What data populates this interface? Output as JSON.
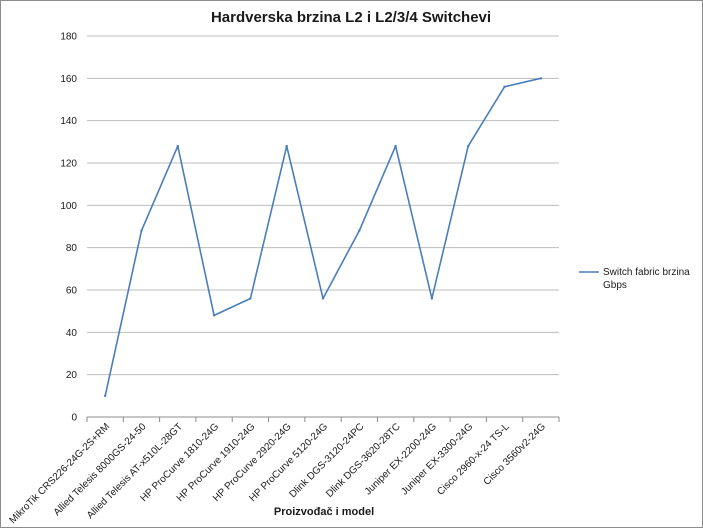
{
  "colors": {
    "series": "#4a7ebb",
    "grid": "#bdbdbd",
    "axis": "#8c8c8c"
  },
  "chart_data": {
    "type": "line",
    "title": "Hardverska brzina L2 i L2/3/4 Switchevi",
    "xlabel": "Proizvođač i model",
    "ylabel": "",
    "ylim": [
      0,
      180
    ],
    "yticks": [
      0,
      20,
      40,
      60,
      80,
      100,
      120,
      140,
      160,
      180
    ],
    "grid": true,
    "legend_position": "right",
    "categories": [
      "MikroTik CRS226-24G-2S+RM",
      "Allied Telesis 8000GS-24-50",
      "Allied Telesis AT-x510L-28GT",
      "HP ProCurve 1810-24G",
      "HP ProCurve 1910-24G",
      "HP ProCurve 2920-24G",
      "HP ProCurve 5120-24G",
      "Dlink DGS-3120-24PC",
      "Dlink DGS-3620-28TC",
      "Juniper EX-2200-24G",
      "Juniper EX-3300-24G",
      "Cisco 2960-x-24 TS-L",
      "Cisco 3560v2-24G"
    ],
    "series": [
      {
        "name": "Switch fabric brzina Gbps",
        "name_lines": [
          "Switch fabric brzina",
          "Gbps"
        ],
        "values": [
          10,
          88,
          128,
          48,
          56,
          128,
          56,
          88,
          128,
          56,
          128,
          156,
          160
        ]
      }
    ]
  }
}
